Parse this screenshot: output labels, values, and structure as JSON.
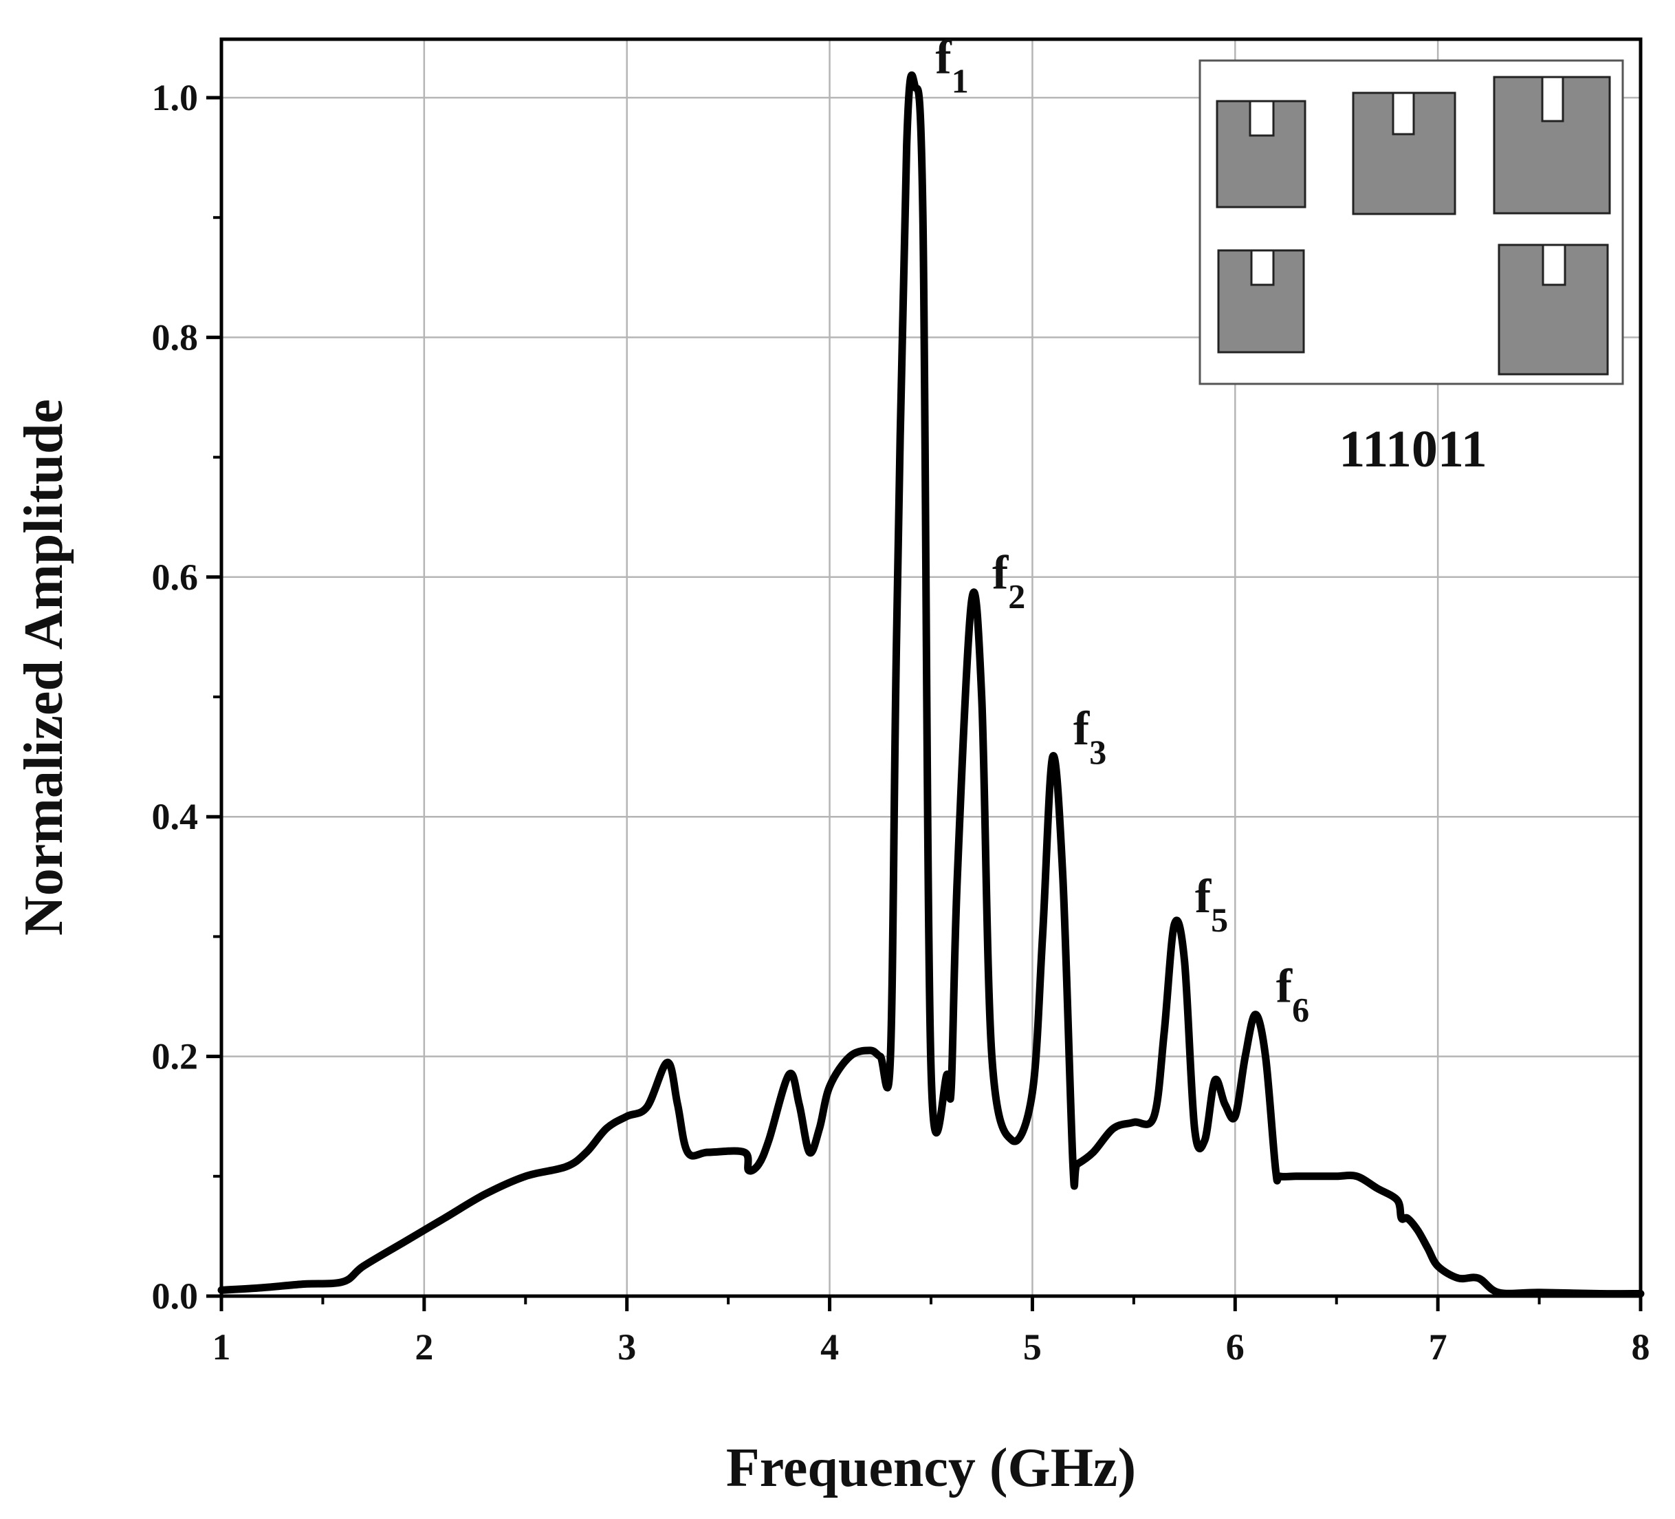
{
  "chart_data": {
    "type": "line",
    "title": "",
    "xlabel": "Frequency (GHz)",
    "ylabel": "Normalized Amplitude",
    "xlim": [
      1,
      8
    ],
    "ylim": [
      0.0,
      1.05
    ],
    "xticks": [
      1,
      2,
      3,
      4,
      5,
      6,
      7,
      8
    ],
    "yticks": [
      0.0,
      0.2,
      0.4,
      0.6,
      0.8,
      1.0
    ],
    "xtick_labels": [
      "1",
      "2",
      "3",
      "4",
      "5",
      "6",
      "7",
      "8"
    ],
    "ytick_labels": [
      "0.0",
      "0.2",
      "0.4",
      "0.6",
      "0.8",
      "1.0"
    ],
    "grid": true,
    "line_color": "#000000",
    "series": [
      {
        "x": [
          1.0,
          1.2,
          1.4,
          1.6,
          1.7,
          1.9,
          2.1,
          2.3,
          2.5,
          2.7,
          2.8,
          2.9,
          3.0,
          3.1,
          3.2,
          3.25,
          3.3,
          3.4,
          3.58,
          3.6,
          3.65,
          3.7,
          3.8,
          3.85,
          3.9,
          3.95,
          4.0,
          4.1,
          4.2,
          4.25,
          4.3,
          4.33,
          4.38,
          4.42,
          4.46,
          4.5,
          4.58,
          4.6,
          4.63,
          4.7,
          4.75,
          4.8,
          4.9,
          5.0,
          5.05,
          5.1,
          5.15,
          5.2,
          5.22,
          5.3,
          5.4,
          5.5,
          5.6,
          5.65,
          5.7,
          5.75,
          5.8,
          5.85,
          5.9,
          5.95,
          6.0,
          6.05,
          6.1,
          6.15,
          6.2,
          6.22,
          6.3,
          6.4,
          6.5,
          6.6,
          6.7,
          6.8,
          6.82,
          6.85,
          6.9,
          6.95,
          7.0,
          7.1,
          7.2,
          7.3,
          7.5,
          7.8,
          8.0
        ],
        "y": [
          0.005,
          0.007,
          0.01,
          0.012,
          0.025,
          0.045,
          0.065,
          0.085,
          0.1,
          0.108,
          0.12,
          0.14,
          0.15,
          0.158,
          0.195,
          0.16,
          0.12,
          0.12,
          0.12,
          0.105,
          0.11,
          0.13,
          0.185,
          0.16,
          0.12,
          0.14,
          0.175,
          0.2,
          0.205,
          0.2,
          0.2,
          0.55,
          0.96,
          1.01,
          0.9,
          0.19,
          0.185,
          0.175,
          0.35,
          0.58,
          0.5,
          0.2,
          0.13,
          0.17,
          0.3,
          0.45,
          0.35,
          0.11,
          0.11,
          0.12,
          0.14,
          0.145,
          0.15,
          0.22,
          0.31,
          0.28,
          0.14,
          0.13,
          0.18,
          0.16,
          0.15,
          0.2,
          0.235,
          0.2,
          0.105,
          0.1,
          0.1,
          0.1,
          0.1,
          0.1,
          0.09,
          0.08,
          0.065,
          0.065,
          0.055,
          0.04,
          0.025,
          0.015,
          0.015,
          0.003,
          0.003,
          0.002,
          0.002
        ]
      }
    ],
    "annotations": [
      {
        "base": "f",
        "sub": "1",
        "x": 4.42,
        "y": 1.01
      },
      {
        "base": "f",
        "sub": "2",
        "x": 4.7,
        "y": 0.58
      },
      {
        "base": "f",
        "sub": "3",
        "x": 5.1,
        "y": 0.45
      },
      {
        "base": "f",
        "sub": "5",
        "x": 5.7,
        "y": 0.31
      },
      {
        "base": "f",
        "sub": "6",
        "x": 6.1,
        "y": 0.235
      }
    ],
    "inset": {
      "code": "111011",
      "patch_fill": "#898989",
      "patch_stroke": "#222222"
    }
  }
}
